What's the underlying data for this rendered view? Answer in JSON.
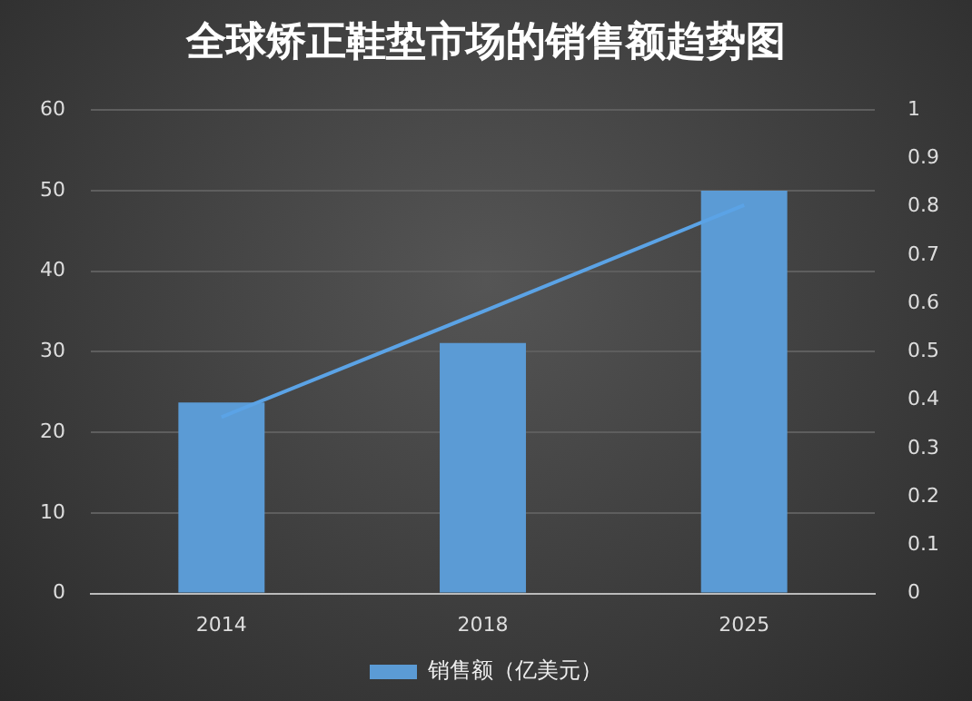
{
  "chart_data": {
    "type": "bar",
    "title": "全球矫正鞋垫市场的销售额趋势图",
    "categories": [
      "2014",
      "2018",
      "2025"
    ],
    "series": [
      {
        "name": "销售额（亿美元）",
        "color": "#5b9bd5",
        "values": [
          23.7,
          31.1,
          50
        ]
      },
      {
        "type": "line",
        "color": "#5ba3e6",
        "values": [
          21.9,
          35,
          48.2
        ]
      }
    ],
    "ylim": [
      0,
      60
    ],
    "yticks": [
      0,
      10,
      20,
      30,
      40,
      50,
      60
    ],
    "y2lim": [
      0,
      1
    ],
    "y2ticks": [
      0,
      0.1,
      0.2,
      0.3,
      0.4,
      0.5,
      0.6,
      0.7,
      0.8,
      0.9,
      1
    ],
    "grid": "y",
    "legend": "bottom",
    "marker": "none"
  }
}
